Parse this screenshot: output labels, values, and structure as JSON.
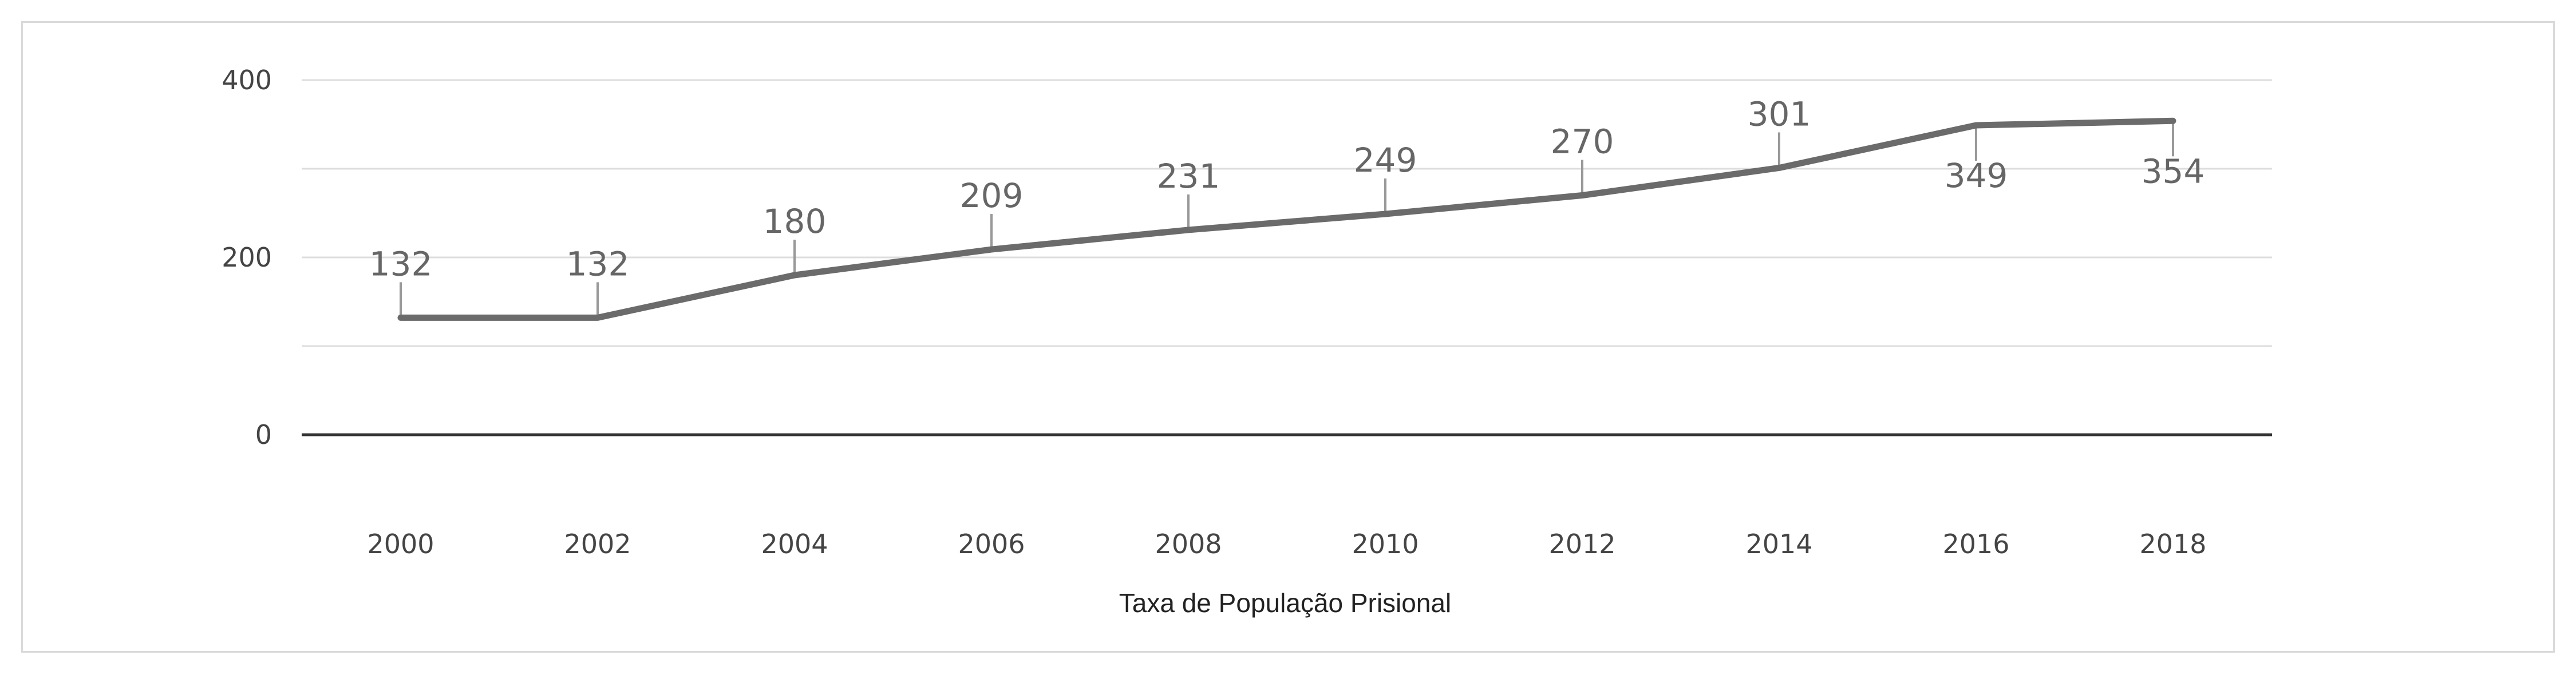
{
  "chart_data": {
    "type": "line",
    "title": "",
    "xlabel": "Taxa de População Prisional",
    "ylabel": "",
    "x": [
      "2000",
      "2002",
      "2004",
      "2006",
      "2008",
      "2010",
      "2012",
      "2014",
      "2016",
      "2018"
    ],
    "series": [
      {
        "values": [
          132,
          132,
          180,
          209,
          231,
          249,
          270,
          301,
          349,
          354
        ]
      }
    ],
    "ylim": [
      0,
      400
    ],
    "yticks": [
      "0",
      "200",
      "400"
    ],
    "grid": true,
    "legend": "none",
    "colors": {
      "line": "#6b6b6b",
      "grid": "#dddddd",
      "baseline": "#333333",
      "connector": "#999999"
    }
  }
}
